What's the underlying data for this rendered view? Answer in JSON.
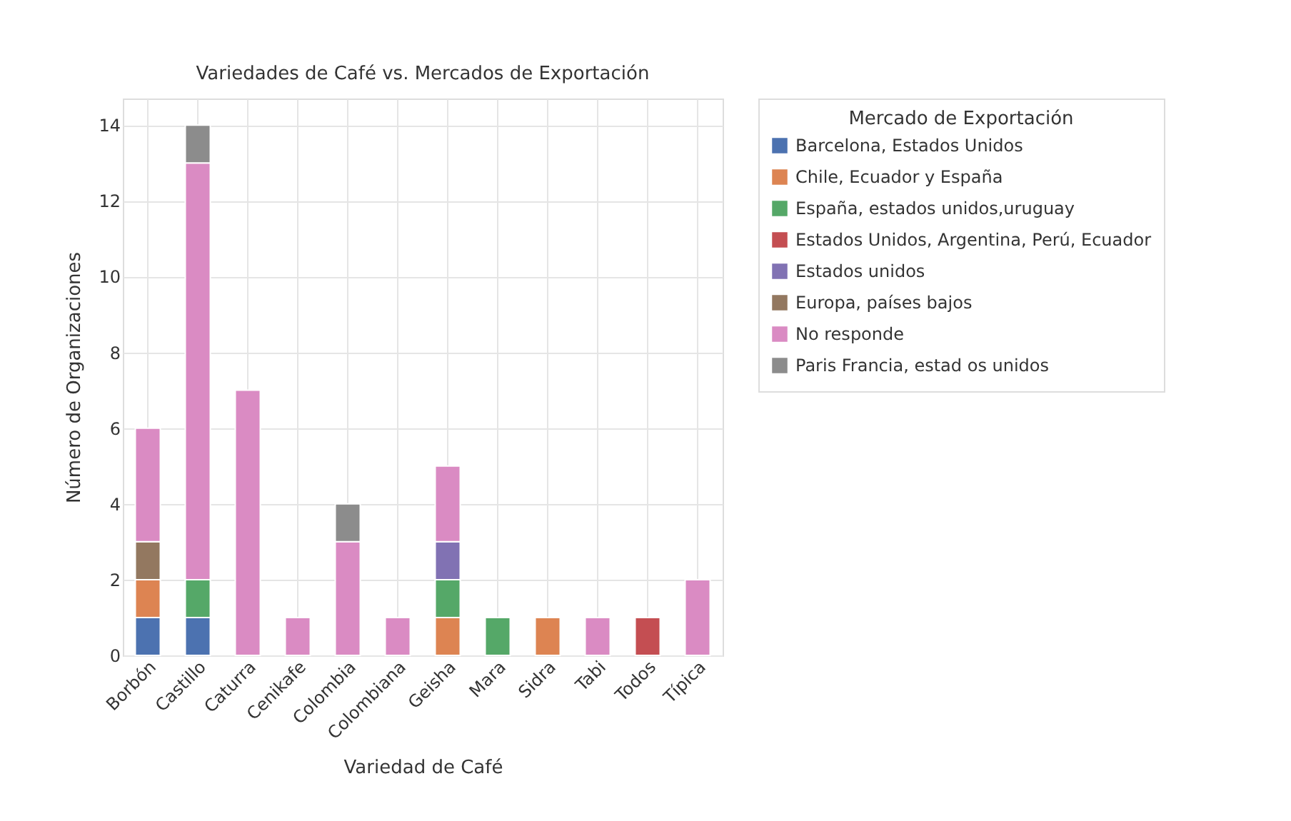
{
  "chart_data": {
    "type": "bar",
    "title": "Variedades de Café vs. Mercados de Exportación",
    "xlabel": "Variedad de Café",
    "ylabel": "Número de Organizaciones",
    "legend_title": "Mercado de Exportación",
    "categories": [
      "Borbón",
      "Castillo",
      "Caturra",
      "Cenikafe",
      "Colombia",
      "Colombiana",
      "Geisha",
      "Mara",
      "Sidra",
      "Tabi",
      "Todos",
      "Típica"
    ],
    "stacked": true,
    "series": [
      {
        "name": "Barcelona, Estados Unidos",
        "color": "#4c72b0",
        "values": [
          1,
          1,
          null,
          null,
          null,
          null,
          null,
          null,
          null,
          null,
          null,
          null
        ]
      },
      {
        "name": "Chile, Ecuador y España",
        "color": "#dd8452",
        "values": [
          1,
          null,
          null,
          null,
          null,
          null,
          1,
          null,
          1,
          null,
          null,
          null
        ]
      },
      {
        "name": "España, estados unidos,uruguay",
        "color": "#55a868",
        "values": [
          null,
          1,
          null,
          null,
          null,
          null,
          1,
          1,
          null,
          null,
          null,
          null
        ]
      },
      {
        "name": "Estados Unidos, Argentina, Perú, Ecuador",
        "color": "#c44e52",
        "values": [
          null,
          null,
          null,
          null,
          null,
          null,
          null,
          null,
          null,
          null,
          1,
          null
        ]
      },
      {
        "name": "Estados unidos",
        "color": "#8172b3",
        "values": [
          null,
          null,
          null,
          null,
          null,
          null,
          1,
          null,
          null,
          null,
          null,
          null
        ]
      },
      {
        "name": "Europa, países bajos",
        "color": "#937860",
        "values": [
          1,
          null,
          null,
          null,
          null,
          null,
          null,
          null,
          null,
          null,
          null,
          null
        ]
      },
      {
        "name": "No responde",
        "color": "#da8bc3",
        "values": [
          3,
          11,
          7,
          1,
          3,
          1,
          2,
          null,
          null,
          1,
          null,
          2
        ]
      },
      {
        "name": "Paris Francia, estad os unidos",
        "color": "#8c8c8c",
        "values": [
          null,
          1,
          null,
          null,
          1,
          null,
          null,
          null,
          null,
          null,
          null,
          null
        ]
      }
    ],
    "ylim": [
      0,
      14.7
    ],
    "yticks": [
      0,
      2,
      4,
      6,
      8,
      10,
      12,
      14
    ],
    "grid": true,
    "legend": "top right"
  }
}
